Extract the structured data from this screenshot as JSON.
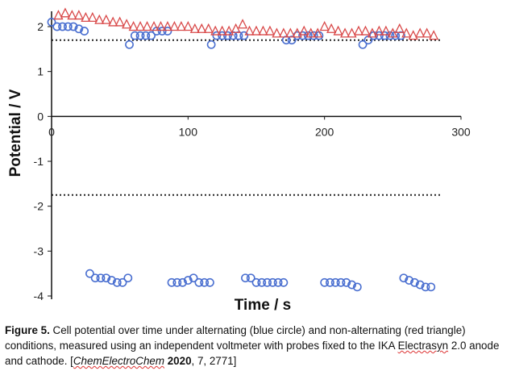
{
  "chart_data": {
    "type": "scatter",
    "xlabel": "Time / s",
    "ylabel": "Potential / V",
    "xlim": [
      0,
      300
    ],
    "ylim": [
      -4,
      2.4
    ],
    "x_ticks": [
      0,
      100,
      200,
      300
    ],
    "y_ticks": [
      2,
      1,
      0,
      -1,
      -2,
      -3,
      -4
    ],
    "x_tick_labels": [
      "0",
      "100",
      "200",
      "300"
    ],
    "y_tick_labels": [
      "2",
      "1",
      "0",
      "-1",
      "-2",
      "-3",
      "-4"
    ],
    "reference_lines": [
      {
        "y": 1.7,
        "style": "dotted"
      },
      {
        "y": -1.75,
        "style": "dotted"
      }
    ],
    "series": [
      {
        "name": "alternating (blue circle)",
        "marker": "circle",
        "color": "#4a6fd0",
        "points": [
          [
            0,
            2.1
          ],
          [
            4,
            2.0
          ],
          [
            8,
            2.0
          ],
          [
            12,
            2.0
          ],
          [
            16,
            2.0
          ],
          [
            20,
            1.95
          ],
          [
            24,
            1.9
          ],
          [
            28,
            -3.5
          ],
          [
            32,
            -3.6
          ],
          [
            36,
            -3.6
          ],
          [
            40,
            -3.6
          ],
          [
            44,
            -3.65
          ],
          [
            48,
            -3.7
          ],
          [
            52,
            -3.7
          ],
          [
            56,
            -3.6
          ],
          [
            57,
            1.6
          ],
          [
            61,
            1.8
          ],
          [
            65,
            1.8
          ],
          [
            69,
            1.8
          ],
          [
            73,
            1.8
          ],
          [
            77,
            1.9
          ],
          [
            81,
            1.9
          ],
          [
            85,
            1.9
          ],
          [
            88,
            -3.7
          ],
          [
            92,
            -3.7
          ],
          [
            96,
            -3.7
          ],
          [
            100,
            -3.65
          ],
          [
            104,
            -3.6
          ],
          [
            108,
            -3.7
          ],
          [
            112,
            -3.7
          ],
          [
            116,
            -3.7
          ],
          [
            117,
            1.6
          ],
          [
            121,
            1.8
          ],
          [
            125,
            1.8
          ],
          [
            129,
            1.8
          ],
          [
            133,
            1.8
          ],
          [
            137,
            1.8
          ],
          [
            141,
            1.8
          ],
          [
            142,
            -3.6
          ],
          [
            146,
            -3.6
          ],
          [
            150,
            -3.7
          ],
          [
            154,
            -3.7
          ],
          [
            158,
            -3.7
          ],
          [
            162,
            -3.7
          ],
          [
            166,
            -3.7
          ],
          [
            170,
            -3.7
          ],
          [
            172,
            1.7
          ],
          [
            176,
            1.7
          ],
          [
            180,
            1.8
          ],
          [
            184,
            1.8
          ],
          [
            188,
            1.8
          ],
          [
            192,
            1.8
          ],
          [
            196,
            1.8
          ],
          [
            200,
            -3.7
          ],
          [
            204,
            -3.7
          ],
          [
            208,
            -3.7
          ],
          [
            212,
            -3.7
          ],
          [
            216,
            -3.7
          ],
          [
            220,
            -3.75
          ],
          [
            224,
            -3.8
          ],
          [
            228,
            1.6
          ],
          [
            232,
            1.7
          ],
          [
            236,
            1.8
          ],
          [
            240,
            1.8
          ],
          [
            244,
            1.8
          ],
          [
            248,
            1.8
          ],
          [
            252,
            1.8
          ],
          [
            256,
            1.8
          ],
          [
            258,
            -3.6
          ],
          [
            262,
            -3.65
          ],
          [
            266,
            -3.7
          ],
          [
            270,
            -3.75
          ],
          [
            274,
            -3.8
          ],
          [
            278,
            -3.8
          ]
        ]
      },
      {
        "name": "non-alternating (red triangle)",
        "marker": "triangle",
        "color": "#d94a4a",
        "points": [
          [
            5,
            2.25
          ],
          [
            10,
            2.3
          ],
          [
            15,
            2.25
          ],
          [
            20,
            2.25
          ],
          [
            25,
            2.2
          ],
          [
            30,
            2.2
          ],
          [
            35,
            2.15
          ],
          [
            40,
            2.15
          ],
          [
            45,
            2.1
          ],
          [
            50,
            2.1
          ],
          [
            55,
            2.05
          ],
          [
            60,
            2.0
          ],
          [
            65,
            2.0
          ],
          [
            70,
            2.0
          ],
          [
            75,
            2.0
          ],
          [
            80,
            2.0
          ],
          [
            85,
            2.0
          ],
          [
            90,
            2.0
          ],
          [
            95,
            2.0
          ],
          [
            100,
            2.0
          ],
          [
            105,
            1.95
          ],
          [
            110,
            1.95
          ],
          [
            115,
            1.95
          ],
          [
            120,
            1.9
          ],
          [
            125,
            1.9
          ],
          [
            130,
            1.9
          ],
          [
            135,
            1.95
          ],
          [
            140,
            2.05
          ],
          [
            145,
            1.9
          ],
          [
            150,
            1.9
          ],
          [
            155,
            1.9
          ],
          [
            160,
            1.9
          ],
          [
            165,
            1.85
          ],
          [
            170,
            1.85
          ],
          [
            175,
            1.85
          ],
          [
            180,
            1.85
          ],
          [
            185,
            1.9
          ],
          [
            190,
            1.85
          ],
          [
            195,
            1.85
          ],
          [
            200,
            2.0
          ],
          [
            205,
            1.95
          ],
          [
            210,
            1.9
          ],
          [
            215,
            1.85
          ],
          [
            220,
            1.85
          ],
          [
            225,
            1.9
          ],
          [
            230,
            1.9
          ],
          [
            235,
            1.85
          ],
          [
            240,
            1.9
          ],
          [
            245,
            1.9
          ],
          [
            250,
            1.85
          ],
          [
            255,
            1.95
          ],
          [
            260,
            1.85
          ],
          [
            265,
            1.8
          ],
          [
            270,
            1.85
          ],
          [
            275,
            1.85
          ],
          [
            280,
            1.8
          ]
        ]
      }
    ]
  },
  "caption": {
    "label": "Figure 5.",
    "text": " Cell potential over time under alternating (blue circle) and non-alternating (red triangle) conditions, measured using an independent voltmeter with probes fixed to the IKA ",
    "squiggle_word": "Electrasyn",
    "text2": " 2.0 anode and cathode. [",
    "journal": "ChemElectroChem",
    "year": "2020",
    "ref_rest": ", 7, 2771]"
  }
}
